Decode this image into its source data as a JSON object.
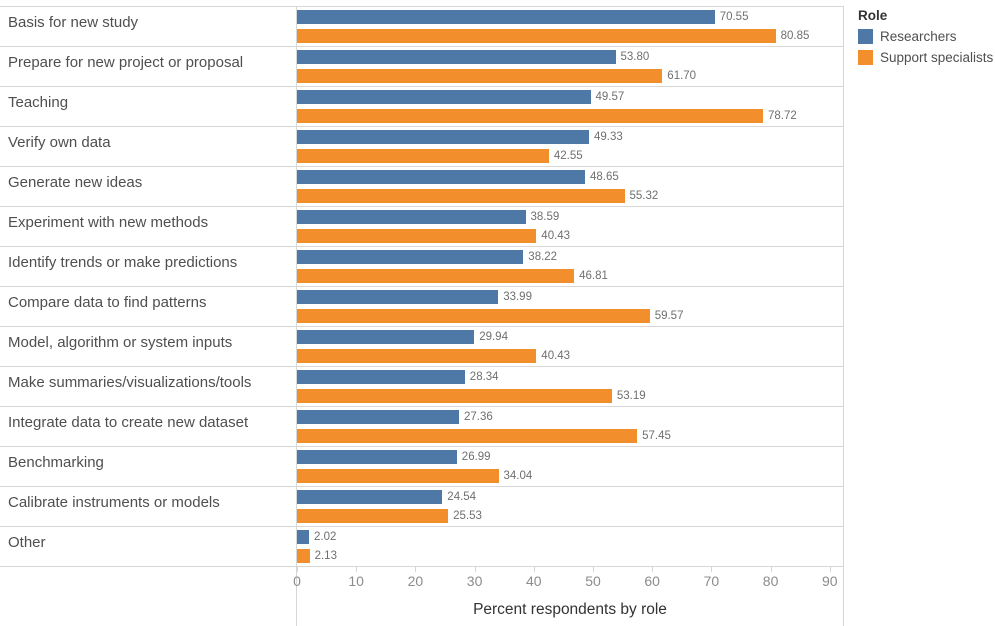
{
  "chart_data": {
    "type": "bar",
    "orientation": "horizontal",
    "categories": [
      "Basis for new study",
      "Prepare for new project or proposal",
      "Teaching",
      "Verify own data",
      "Generate new ideas",
      "Experiment with new methods",
      "Identify trends or make predictions",
      "Compare data to find patterns",
      "Model, algorithm or system inputs",
      "Make summaries/visualizations/tools",
      "Integrate data to create new dataset",
      "Benchmarking",
      "Calibrate instruments or models",
      "Other"
    ],
    "series": [
      {
        "name": "Researchers",
        "color": "#4e79a7",
        "values": [
          70.55,
          53.8,
          49.57,
          49.33,
          48.65,
          38.59,
          38.22,
          33.99,
          29.94,
          28.34,
          27.36,
          26.99,
          24.54,
          2.02
        ]
      },
      {
        "name": "Support specialists",
        "color": "#f28e2b",
        "values": [
          80.85,
          61.7,
          78.72,
          42.55,
          55.32,
          40.43,
          46.81,
          59.57,
          40.43,
          53.19,
          57.45,
          34.04,
          25.53,
          2.13
        ]
      }
    ],
    "xlabel": "Percent respondents by role",
    "xlim": [
      0,
      90
    ],
    "x_ticks": [
      0,
      10,
      20,
      30,
      40,
      50,
      60,
      70,
      80,
      90
    ],
    "value_labels": "on",
    "grid": "row-separators-only",
    "legend_position": "top-right"
  },
  "axis": {
    "title": "Percent respondents by role"
  },
  "legend": {
    "title": "Role",
    "items": [
      {
        "label": "Researchers",
        "color": "#4e79a7"
      },
      {
        "label": "Support specialists",
        "color": "#f28e2b"
      }
    ]
  },
  "styles": {
    "bar_blue": "#4e79a7",
    "bar_orange": "#f28e2b",
    "grid_line": "#d7d7d7",
    "category_text": "#4f4f4f",
    "value_text": "#6f6f6f",
    "tick_text": "#8c8c8c",
    "axis_title_text": "#333333"
  }
}
